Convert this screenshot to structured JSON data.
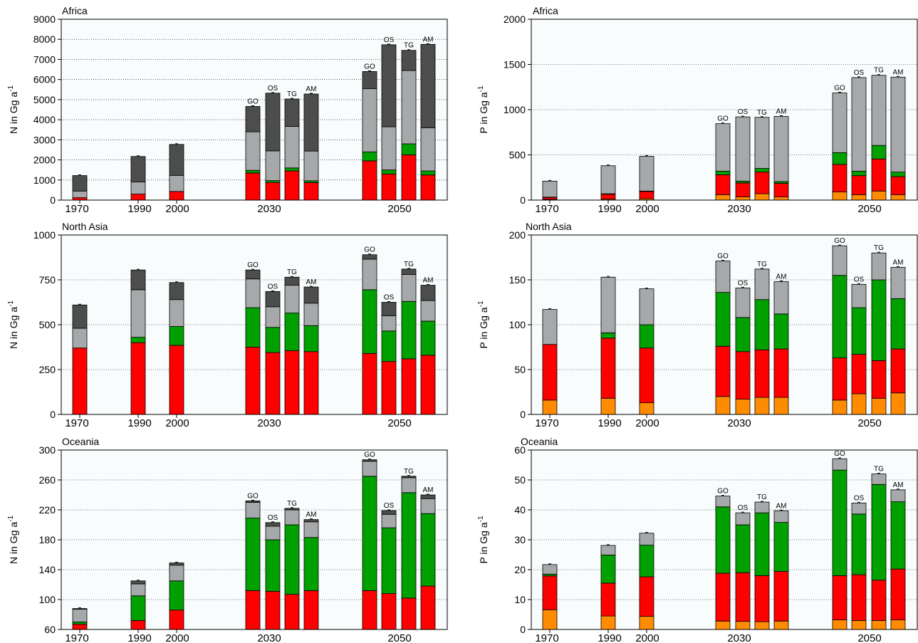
{
  "colors": {
    "orange": "#FF8C00",
    "red": "#FF0000",
    "green": "#00A000",
    "light_gray": "#A6A8AA",
    "dark_gray": "#4D4D4D",
    "panel_bg": "#F8FCFC"
  },
  "chart_data": [
    {
      "type": "bar",
      "stacked": true,
      "title": "Africa",
      "ylabel": "N in Gg a",
      "ylabel_superscript": "-1",
      "ylim": [
        0,
        9000
      ],
      "yticks": [
        "0",
        "1000",
        "2000",
        "3000",
        "4000",
        "5000",
        "6000",
        "7000",
        "8000",
        "9000"
      ],
      "grid": "horizontal dotted",
      "x_labels": [
        "1970",
        "1990",
        "2000",
        "2030",
        "2050"
      ],
      "bars": [
        {
          "year": "1970",
          "scenario": "",
          "stack": [
            0,
            120,
            0,
            330,
            770
          ]
        },
        {
          "year": "1990",
          "scenario": "",
          "stack": [
            0,
            300,
            0,
            600,
            1270
          ]
        },
        {
          "year": "2000",
          "scenario": "",
          "stack": [
            0,
            430,
            0,
            800,
            1540
          ]
        },
        {
          "year": "2030",
          "scenario": "GO",
          "stack": [
            0,
            1350,
            130,
            1920,
            1260
          ]
        },
        {
          "year": "2030",
          "scenario": "OS",
          "stack": [
            0,
            880,
            90,
            1480,
            2870
          ]
        },
        {
          "year": "2030",
          "scenario": "TG",
          "stack": [
            0,
            1450,
            150,
            2070,
            1360
          ]
        },
        {
          "year": "2030",
          "scenario": "AM",
          "stack": [
            0,
            870,
            90,
            1480,
            2840
          ]
        },
        {
          "year": "2050",
          "scenario": "GO",
          "stack": [
            0,
            1950,
            450,
            3150,
            850
          ]
        },
        {
          "year": "2050",
          "scenario": "OS",
          "stack": [
            0,
            1300,
            200,
            2150,
            4080
          ]
        },
        {
          "year": "2050",
          "scenario": "TG",
          "stack": [
            0,
            2250,
            550,
            3650,
            1000
          ]
        },
        {
          "year": "2050",
          "scenario": "AM",
          "stack": [
            0,
            1250,
            200,
            2150,
            4150
          ]
        }
      ]
    },
    {
      "type": "bar",
      "stacked": true,
      "title": "Africa",
      "ylabel": "P in Gg a",
      "ylabel_superscript": "-1",
      "ylim": [
        0,
        2000
      ],
      "yticks": [
        "0",
        "500",
        "1000",
        "1500",
        "2000"
      ],
      "grid": "horizontal dotted",
      "x_labels": [
        "1970",
        "1990",
        "2000",
        "2030",
        "2050"
      ],
      "bars": [
        {
          "year": "1970",
          "scenario": "",
          "stack": [
            8,
            22,
            3,
            177,
            0
          ]
        },
        {
          "year": "1990",
          "scenario": "",
          "stack": [
            10,
            55,
            5,
            310,
            0
          ]
        },
        {
          "year": "2000",
          "scenario": "",
          "stack": [
            15,
            80,
            5,
            385,
            0
          ]
        },
        {
          "year": "2030",
          "scenario": "GO",
          "stack": [
            60,
            220,
            40,
            525,
            0
          ]
        },
        {
          "year": "2030",
          "scenario": "OS",
          "stack": [
            35,
            155,
            20,
            710,
            0
          ]
        },
        {
          "year": "2030",
          "scenario": "TG",
          "stack": [
            70,
            240,
            40,
            565,
            0
          ]
        },
        {
          "year": "2030",
          "scenario": "AM",
          "stack": [
            35,
            150,
            20,
            720,
            0
          ]
        },
        {
          "year": "2050",
          "scenario": "GO",
          "stack": [
            90,
            305,
            130,
            660,
            0
          ]
        },
        {
          "year": "2050",
          "scenario": "OS",
          "stack": [
            60,
            210,
            50,
            1035,
            0
          ]
        },
        {
          "year": "2050",
          "scenario": "TG",
          "stack": [
            100,
            355,
            150,
            775,
            0
          ]
        },
        {
          "year": "2050",
          "scenario": "AM",
          "stack": [
            60,
            200,
            50,
            1050,
            0
          ]
        }
      ]
    },
    {
      "type": "bar",
      "stacked": true,
      "title": "North Asia",
      "ylabel": "N in Gg a",
      "ylabel_superscript": "-1",
      "ylim": [
        0,
        1000
      ],
      "yticks": [
        "0",
        "250",
        "500",
        "750",
        "1000"
      ],
      "grid": "horizontal dotted",
      "x_labels": [
        "1970",
        "1990",
        "2000",
        "2030",
        "2050"
      ],
      "bars": [
        {
          "year": "1970",
          "scenario": "",
          "stack": [
            0,
            370,
            0,
            110,
            130
          ]
        },
        {
          "year": "1990",
          "scenario": "",
          "stack": [
            0,
            400,
            30,
            265,
            110
          ]
        },
        {
          "year": "2000",
          "scenario": "",
          "stack": [
            0,
            385,
            105,
            150,
            95
          ]
        },
        {
          "year": "2030",
          "scenario": "GO",
          "stack": [
            0,
            375,
            220,
            160,
            50
          ]
        },
        {
          "year": "2030",
          "scenario": "OS",
          "stack": [
            0,
            345,
            140,
            115,
            85
          ]
        },
        {
          "year": "2030",
          "scenario": "TG",
          "stack": [
            0,
            355,
            210,
            155,
            45
          ]
        },
        {
          "year": "2030",
          "scenario": "AM",
          "stack": [
            0,
            350,
            145,
            125,
            90
          ]
        },
        {
          "year": "2050",
          "scenario": "GO",
          "stack": [
            0,
            340,
            355,
            170,
            25
          ]
        },
        {
          "year": "2050",
          "scenario": "OS",
          "stack": [
            0,
            295,
            170,
            85,
            75
          ]
        },
        {
          "year": "2050",
          "scenario": "TG",
          "stack": [
            0,
            310,
            320,
            150,
            30
          ]
        },
        {
          "year": "2050",
          "scenario": "AM",
          "stack": [
            0,
            330,
            190,
            115,
            85
          ]
        }
      ]
    },
    {
      "type": "bar",
      "stacked": true,
      "title": "North Asia",
      "ylabel": "P in Gg a",
      "ylabel_superscript": "-1",
      "ylim": [
        0,
        200
      ],
      "yticks": [
        "0",
        "50",
        "100",
        "150",
        "200"
      ],
      "grid": "horizontal dotted",
      "x_labels": [
        "1970",
        "1990",
        "2000",
        "2030",
        "2050"
      ],
      "bars": [
        {
          "year": "1970",
          "scenario": "",
          "stack": [
            16,
            62,
            0,
            39,
            0
          ]
        },
        {
          "year": "1990",
          "scenario": "",
          "stack": [
            18,
            67,
            6,
            62,
            0
          ]
        },
        {
          "year": "2000",
          "scenario": "",
          "stack": [
            13,
            61,
            26,
            40,
            0
          ]
        },
        {
          "year": "2030",
          "scenario": "GO",
          "stack": [
            20,
            56,
            60,
            35,
            0
          ]
        },
        {
          "year": "2030",
          "scenario": "OS",
          "stack": [
            17,
            53,
            38,
            33,
            0
          ]
        },
        {
          "year": "2030",
          "scenario": "TG",
          "stack": [
            19,
            53,
            56,
            34,
            0
          ]
        },
        {
          "year": "2030",
          "scenario": "AM",
          "stack": [
            19,
            54,
            39,
            36,
            0
          ]
        },
        {
          "year": "2050",
          "scenario": "GO",
          "stack": [
            16,
            47,
            92,
            33,
            0
          ]
        },
        {
          "year": "2050",
          "scenario": "OS",
          "stack": [
            23,
            44,
            52,
            26,
            0
          ]
        },
        {
          "year": "2050",
          "scenario": "TG",
          "stack": [
            18,
            42,
            90,
            30,
            0
          ]
        },
        {
          "year": "2050",
          "scenario": "AM",
          "stack": [
            24,
            49,
            56,
            35,
            0
          ]
        }
      ]
    },
    {
      "type": "bar",
      "stacked": true,
      "title": "Oceania",
      "ylabel": "N in Gg a",
      "ylabel_superscript": "-1",
      "ylim": [
        60,
        300
      ],
      "yticks": [
        "60",
        "100",
        "140",
        "180",
        "220",
        "260",
        "300"
      ],
      "grid": "horizontal dotted",
      "x_labels": [
        "1970",
        "1990",
        "2000",
        "2030",
        "2050"
      ],
      "bars": [
        {
          "year": "1970",
          "scenario": "",
          "stack": [
            0,
            7,
            3,
            17,
            1
          ]
        },
        {
          "year": "1990",
          "scenario": "",
          "stack": [
            0,
            12,
            33,
            16,
            4
          ]
        },
        {
          "year": "2000",
          "scenario": "",
          "stack": [
            0,
            26,
            39,
            21,
            3
          ]
        },
        {
          "year": "2030",
          "scenario": "GO",
          "stack": [
            0,
            52,
            97,
            21,
            2
          ]
        },
        {
          "year": "2030",
          "scenario": "OS",
          "stack": [
            0,
            51,
            69,
            18,
            5
          ]
        },
        {
          "year": "2030",
          "scenario": "TG",
          "stack": [
            0,
            47,
            93,
            20,
            2
          ]
        },
        {
          "year": "2030",
          "scenario": "AM",
          "stack": [
            0,
            52,
            71,
            21,
            3
          ]
        },
        {
          "year": "2050",
          "scenario": "GO",
          "stack": [
            0,
            52,
            153,
            20,
            2
          ]
        },
        {
          "year": "2050",
          "scenario": "OS",
          "stack": [
            0,
            48,
            88,
            18,
            5
          ]
        },
        {
          "year": "2050",
          "scenario": "TG",
          "stack": [
            0,
            42,
            141,
            20,
            2
          ]
        },
        {
          "year": "2050",
          "scenario": "AM",
          "stack": [
            0,
            58,
            97,
            20,
            5
          ]
        }
      ]
    },
    {
      "type": "bar",
      "stacked": true,
      "title": "Oceania",
      "ylabel": "P in Gg a",
      "ylabel_superscript": "-1",
      "ylim": [
        0,
        60
      ],
      "yticks": [
        "0",
        "10",
        "20",
        "30",
        "40",
        "50",
        "60"
      ],
      "grid": "horizontal dotted",
      "x_labels": [
        "1970",
        "1990",
        "2000",
        "2030",
        "2050"
      ],
      "bars": [
        {
          "year": "1970",
          "scenario": "",
          "stack": [
            6.6,
            11.3,
            0.6,
            3.2,
            0
          ]
        },
        {
          "year": "1990",
          "scenario": "",
          "stack": [
            4.5,
            11,
            9.4,
            3.2,
            0
          ]
        },
        {
          "year": "2000",
          "scenario": "",
          "stack": [
            4.4,
            13.2,
            10.6,
            4,
            0
          ]
        },
        {
          "year": "2030",
          "scenario": "GO",
          "stack": [
            2.8,
            16,
            22.2,
            3.6,
            0
          ]
        },
        {
          "year": "2030",
          "scenario": "OS",
          "stack": [
            2.7,
            16.3,
            16,
            4,
            0
          ]
        },
        {
          "year": "2030",
          "scenario": "TG",
          "stack": [
            2.6,
            15.4,
            21,
            3.6,
            0
          ]
        },
        {
          "year": "2030",
          "scenario": "AM",
          "stack": [
            2.8,
            16.6,
            16.4,
            3.9,
            0
          ]
        },
        {
          "year": "2050",
          "scenario": "GO",
          "stack": [
            3.2,
            14.8,
            35.3,
            3.8,
            0
          ]
        },
        {
          "year": "2050",
          "scenario": "OS",
          "stack": [
            3,
            15.3,
            20.3,
            3.7,
            0
          ]
        },
        {
          "year": "2050",
          "scenario": "TG",
          "stack": [
            3,
            13.5,
            32,
            3.5,
            0
          ]
        },
        {
          "year": "2050",
          "scenario": "AM",
          "stack": [
            3.2,
            17,
            22.5,
            4,
            0
          ]
        }
      ]
    }
  ]
}
